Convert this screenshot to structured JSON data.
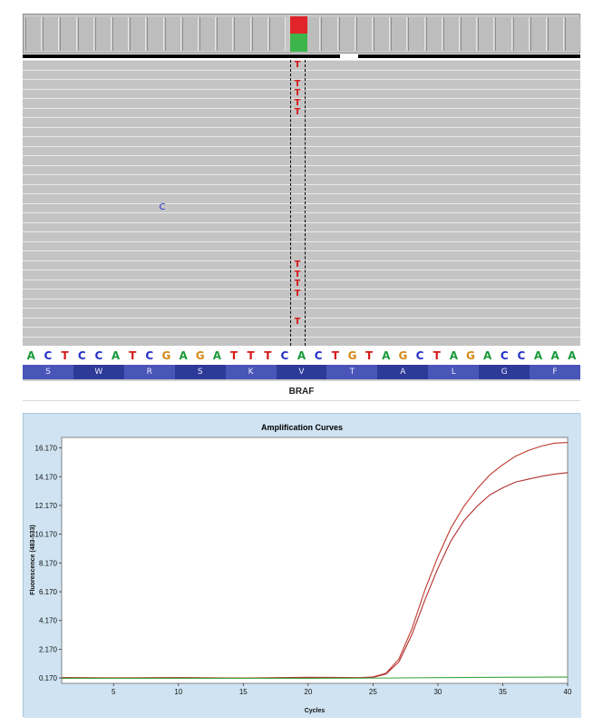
{
  "igv": {
    "gene_label": "BRAF",
    "sequence": [
      "A",
      "C",
      "T",
      "C",
      "C",
      "A",
      "T",
      "C",
      "G",
      "A",
      "G",
      "A",
      "T",
      "T",
      "T",
      "C",
      "A",
      "C",
      "T",
      "G",
      "T",
      "A",
      "G",
      "C",
      "T",
      "A",
      "G",
      "A",
      "C",
      "C",
      "A",
      "A",
      "A"
    ],
    "amino_acids": [
      "S",
      "W",
      "R",
      "S",
      "K",
      "V",
      "T",
      "A",
      "L",
      "G",
      "F"
    ],
    "mismatch_base": "T",
    "mismatch_rows": [
      0,
      2,
      3,
      4,
      5,
      21,
      22,
      23,
      24,
      27
    ],
    "other_base": "C",
    "base_colors": {
      "A": "#1a9a3a",
      "C": "#2531c7",
      "G": "#d4891a",
      "T": "#d41a1a"
    },
    "amino_acid_colors": [
      "#4a55b8",
      "#2e3a98"
    ],
    "coverage_colors": {
      "alt": "#e0242a",
      "ref": "#3cb54a"
    }
  },
  "chart_data": {
    "type": "line",
    "title": "Amplification Curves",
    "xlabel": "Cycles",
    "ylabel": "Fluorescence (483-533)",
    "xlim": [
      1,
      40
    ],
    "ylim": [
      -0.2,
      16.9
    ],
    "x_ticks": [
      5,
      10,
      15,
      20,
      25,
      30,
      35,
      40
    ],
    "y_ticks": [
      0.17,
      2.17,
      4.17,
      6.17,
      8.17,
      10.17,
      12.17,
      14.17,
      16.17
    ],
    "y_tick_labels": [
      "0.170",
      "2.170",
      "4.170",
      "6.170",
      "8.170",
      "10.170",
      "12.170",
      "14.170",
      "16.170"
    ],
    "grid": false,
    "series": [
      {
        "color": "#c0392b",
        "points": [
          [
            1,
            0.2
          ],
          [
            5,
            0.18
          ],
          [
            10,
            0.2
          ],
          [
            15,
            0.17
          ],
          [
            20,
            0.22
          ],
          [
            24,
            0.2
          ],
          [
            25,
            0.25
          ],
          [
            26,
            0.5
          ],
          [
            27,
            1.5
          ],
          [
            28,
            3.6
          ],
          [
            29,
            6.3
          ],
          [
            30,
            8.6
          ],
          [
            31,
            10.6
          ],
          [
            32,
            12.1
          ],
          [
            33,
            13.3
          ],
          [
            34,
            14.3
          ],
          [
            35,
            15.0
          ],
          [
            36,
            15.6
          ],
          [
            37,
            16.0
          ],
          [
            38,
            16.3
          ],
          [
            39,
            16.5
          ],
          [
            40,
            16.55
          ]
        ]
      },
      {
        "color": "#b03030",
        "points": [
          [
            1,
            0.2
          ],
          [
            5,
            0.17
          ],
          [
            10,
            0.19
          ],
          [
            15,
            0.16
          ],
          [
            20,
            0.2
          ],
          [
            24,
            0.18
          ],
          [
            25,
            0.22
          ],
          [
            26,
            0.45
          ],
          [
            27,
            1.3
          ],
          [
            28,
            3.2
          ],
          [
            29,
            5.6
          ],
          [
            30,
            7.8
          ],
          [
            31,
            9.7
          ],
          [
            32,
            11.1
          ],
          [
            33,
            12.1
          ],
          [
            34,
            12.9
          ],
          [
            35,
            13.4
          ],
          [
            36,
            13.8
          ],
          [
            37,
            14.0
          ],
          [
            38,
            14.2
          ],
          [
            39,
            14.35
          ],
          [
            40,
            14.45
          ]
        ]
      },
      {
        "color": "#3da63d",
        "points": [
          [
            1,
            0.15
          ],
          [
            10,
            0.15
          ],
          [
            20,
            0.15
          ],
          [
            26,
            0.17
          ],
          [
            30,
            0.2
          ],
          [
            35,
            0.22
          ],
          [
            40,
            0.24
          ]
        ]
      }
    ]
  }
}
